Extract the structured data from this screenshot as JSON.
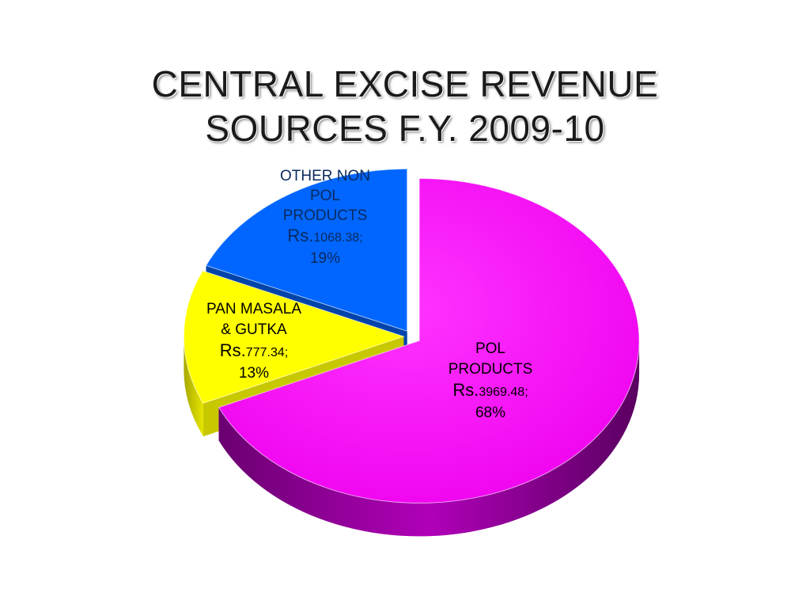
{
  "title_line1": "CENTRAL EXCISE REVENUE",
  "title_line2": "SOURCES F.Y. 2009-10",
  "chart_data": {
    "type": "pie",
    "title": "CENTRAL EXCISE REVENUE SOURCES F.Y. 2009-10",
    "three_d": true,
    "slices": [
      {
        "name_lines": [
          "OTHER NON",
          "POL",
          "PRODUCTS"
        ],
        "currency": "Rs.",
        "value": 1068.38,
        "value_text": "1068.38;",
        "percent": 19,
        "percent_text": "19%",
        "color": "#0066FF",
        "side_color": "#0044AA",
        "exploded": false
      },
      {
        "name_lines": [
          "PAN MASALA",
          "& GUTKA"
        ],
        "currency": "Rs.",
        "value": 777.34,
        "value_text": "777.34;",
        "percent": 13,
        "percent_text": "13%",
        "color": "#FFFF00",
        "side_color": "#C8C800",
        "exploded": false
      },
      {
        "name_lines": [
          "POL",
          "PRODUCTS"
        ],
        "currency": "Rs.",
        "value": 3969.48,
        "value_text": "3969.48;",
        "percent": 68,
        "percent_text": "68%",
        "color": "#FF00FF",
        "side_color": "#8E0090",
        "exploded": true
      }
    ]
  }
}
